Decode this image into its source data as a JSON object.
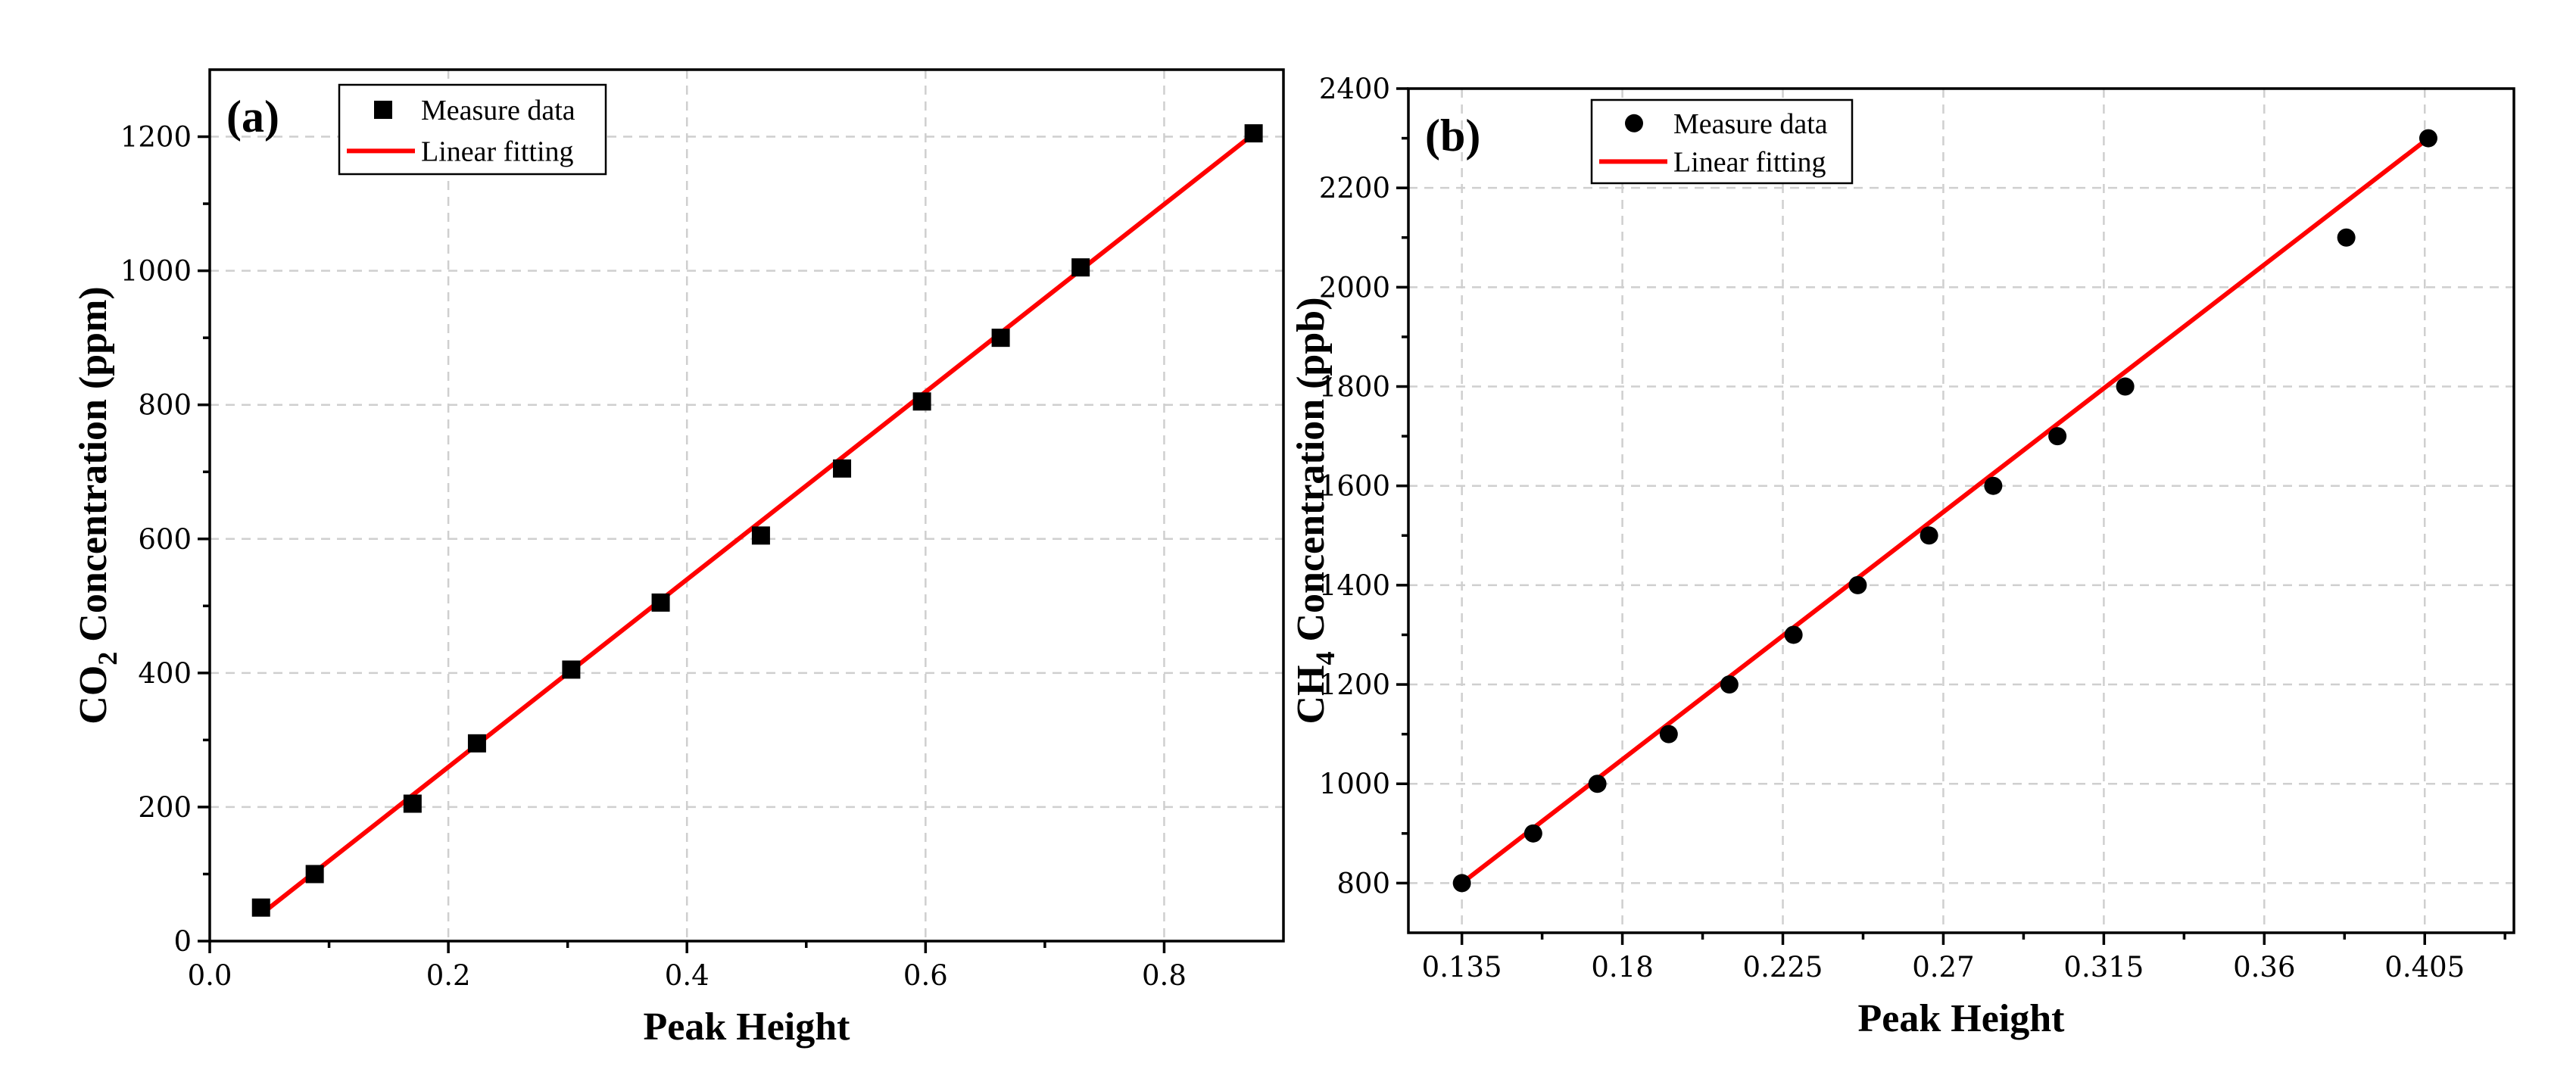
{
  "chart_data": [
    {
      "type": "scatter",
      "panel_label": "(a)",
      "xlabel": "Peak Height",
      "ylabel_main": "CO",
      "ylabel_sub": "2",
      "ylabel_rest": " Concentration (ppm)",
      "xlim": [
        0.0,
        0.9
      ],
      "ylim": [
        0,
        1300
      ],
      "xticks": [
        0.0,
        0.2,
        0.4,
        0.6,
        0.8
      ],
      "xtick_labels": [
        "0.0",
        "0.2",
        "0.4",
        "0.6",
        "0.8"
      ],
      "yticks": [
        0,
        200,
        400,
        600,
        800,
        1000,
        1200
      ],
      "ytick_labels": [
        "0",
        "200",
        "400",
        "600",
        "800",
        "1000",
        "1200"
      ],
      "grid": true,
      "legend_position": "top-left",
      "series": [
        {
          "name": "Measure data",
          "marker": "square",
          "color": "#000000",
          "x": [
            0.043,
            0.088,
            0.17,
            0.224,
            0.303,
            0.378,
            0.462,
            0.53,
            0.597,
            0.663,
            0.73,
            0.875
          ],
          "y": [
            50,
            100,
            205,
            295,
            405,
            505,
            605,
            705,
            805,
            900,
            1005,
            1205
          ]
        },
        {
          "name": "Linear fitting",
          "kind": "line",
          "color": "#ff0000",
          "x": [
            0.043,
            0.875
          ],
          "y": [
            40,
            1204
          ]
        }
      ]
    },
    {
      "type": "scatter",
      "panel_label": "(b)",
      "xlabel": "Peak Height",
      "ylabel_main": "CH",
      "ylabel_sub": "4",
      "ylabel_rest": " Concentration (ppb)",
      "xlim": [
        0.12,
        0.43
      ],
      "ylim": [
        700,
        2400
      ],
      "xticks": [
        0.135,
        0.18,
        0.225,
        0.27,
        0.315,
        0.36,
        0.405
      ],
      "xtick_labels": [
        "0.135",
        "0.18",
        "0.225",
        "0.27",
        "0.315",
        "0.36",
        "0.405"
      ],
      "yticks": [
        800,
        1000,
        1200,
        1400,
        1600,
        1800,
        2000,
        2200,
        2400
      ],
      "ytick_labels": [
        "800",
        "1000",
        "1200",
        "1400",
        "1600",
        "1800",
        "2000",
        "2200",
        "2400"
      ],
      "grid": true,
      "legend_position": "top-left",
      "series": [
        {
          "name": "Measure data",
          "marker": "circle",
          "color": "#000000",
          "x": [
            0.135,
            0.155,
            0.173,
            0.193,
            0.21,
            0.228,
            0.246,
            0.266,
            0.284,
            0.302,
            0.321,
            0.383,
            0.406
          ],
          "y": [
            800,
            900,
            1000,
            1100,
            1200,
            1300,
            1400,
            1500,
            1600,
            1700,
            1800,
            2100,
            2300
          ]
        },
        {
          "name": "Linear fitting",
          "kind": "line",
          "color": "#ff0000",
          "x": [
            0.135,
            0.406
          ],
          "y": [
            800,
            2300
          ]
        }
      ]
    }
  ]
}
